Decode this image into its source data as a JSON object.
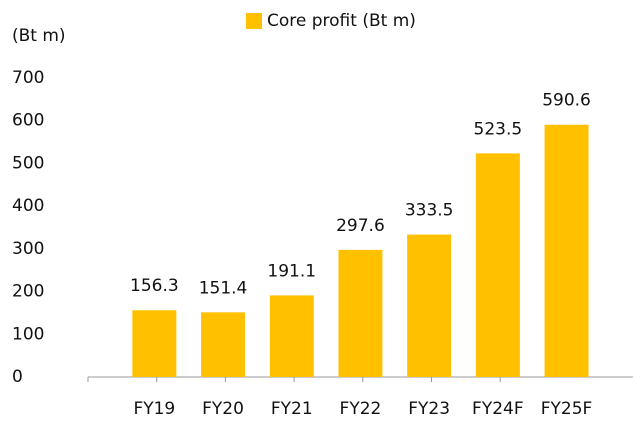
{
  "chart_data": {
    "type": "bar",
    "y_label": "(Bt m)",
    "categories": [
      "FY19",
      "FY20",
      "FY21",
      "FY22",
      "FY23",
      "FY24F",
      "FY25F"
    ],
    "series": [
      {
        "name": "Core profit (Bt m)",
        "color": "#ffc000",
        "values": [
          156.3,
          151.4,
          191.1,
          297.6,
          333.5,
          523.5,
          590.6
        ]
      }
    ],
    "ylim": [
      0,
      700
    ],
    "yticks": [
      0,
      100,
      200,
      300,
      400,
      500,
      600,
      700
    ],
    "grid": false,
    "legend": "top"
  }
}
